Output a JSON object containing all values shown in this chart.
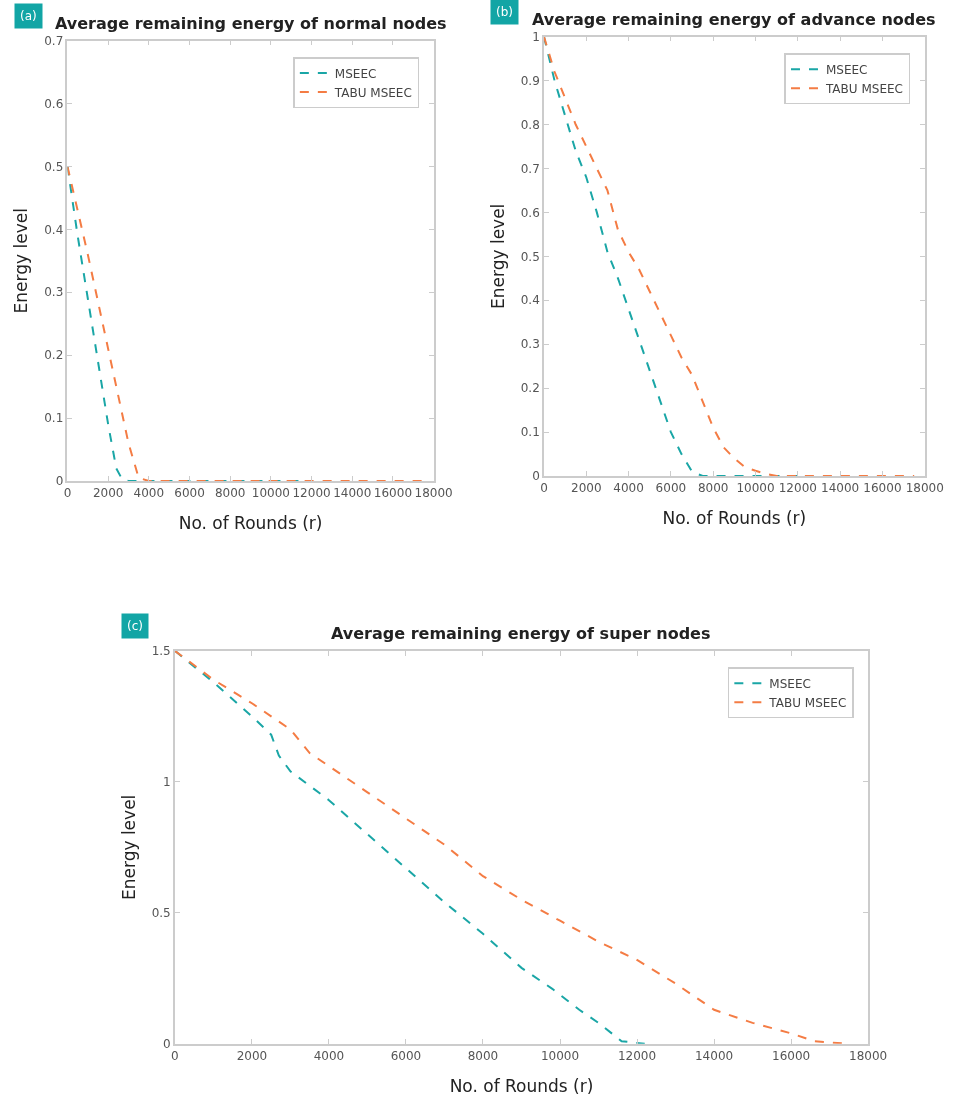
{
  "chart_data": [
    {
      "type": "line",
      "title": "Average remaining energy of normal nodes",
      "xlabel": "No. of Rounds (r)",
      "ylabel": "Energy level",
      "annotations": [
        "(a)"
      ],
      "xlim": [
        0,
        18000
      ],
      "xticks": [
        0,
        2000,
        4000,
        6000,
        8000,
        10000,
        12000,
        14000,
        16000,
        18000
      ],
      "ylim": [
        0,
        0.7
      ],
      "yticks": [
        0,
        0.1,
        0.2,
        0.3,
        0.4,
        0.5,
        0.6,
        0.7
      ],
      "grid": false,
      "legend": "top right",
      "line_style": "dashed",
      "marker": "none",
      "series": [
        {
          "name": "MSEEC",
          "color": "#1aa6a6",
          "x": [
            0,
            500,
            1000,
            1500,
            2000,
            2400,
            2700,
            3000,
            12000
          ],
          "values": [
            0.5,
            0.39,
            0.29,
            0.19,
            0.09,
            0.02,
            0.002,
            0,
            0
          ]
        },
        {
          "name": "TABU MSEEC",
          "color": "#f47c44",
          "x": [
            0,
            1000,
            2000,
            3000,
            3500,
            4000,
            17500
          ],
          "values": [
            0.5,
            0.36,
            0.21,
            0.06,
            0.005,
            0,
            0
          ]
        }
      ]
    },
    {
      "type": "line",
      "title": "Average remaining energy of advance nodes",
      "xlabel": "No. of Rounds (r)",
      "ylabel": "Energy level",
      "annotations": [
        "(b)"
      ],
      "xlim": [
        0,
        18000
      ],
      "xticks": [
        0,
        2000,
        4000,
        6000,
        8000,
        10000,
        12000,
        14000,
        16000,
        18000
      ],
      "ylim": [
        0,
        1
      ],
      "yticks": [
        0,
        0.1,
        0.2,
        0.3,
        0.4,
        0.5,
        0.6,
        0.7,
        0.8,
        0.9,
        1
      ],
      "grid": false,
      "legend": "top right",
      "line_style": "dashed",
      "marker": "none",
      "series": [
        {
          "name": "MSEEC",
          "color": "#1aa6a6",
          "x": [
            0,
            500,
            1000,
            1500,
            2000,
            2500,
            3000,
            3500,
            4000,
            4500,
            5000,
            5500,
            6000,
            6500,
            7000,
            7500,
            12000
          ],
          "values": [
            1,
            0.9,
            0.82,
            0.74,
            0.68,
            0.6,
            0.51,
            0.45,
            0.38,
            0.31,
            0.24,
            0.17,
            0.1,
            0.05,
            0.01,
            0,
            0
          ]
        },
        {
          "name": "TABU MSEEC",
          "color": "#f47c44",
          "x": [
            0,
            500,
            1000,
            1500,
            2000,
            2500,
            3000,
            3500,
            4000,
            4500,
            5000,
            5500,
            6000,
            6500,
            7000,
            7500,
            8000,
            8500,
            9000,
            9500,
            10000,
            10500,
            11000,
            17500
          ],
          "values": [
            1,
            0.92,
            0.86,
            0.8,
            0.75,
            0.7,
            0.65,
            0.56,
            0.51,
            0.47,
            0.42,
            0.37,
            0.32,
            0.27,
            0.23,
            0.17,
            0.11,
            0.065,
            0.04,
            0.02,
            0.012,
            0.005,
            0,
            0
          ]
        }
      ]
    },
    {
      "type": "line",
      "title": "Average remaining energy of super nodes",
      "xlabel": "No. of Rounds (r)",
      "ylabel": "Energy level",
      "annotations": [
        "(c)"
      ],
      "xlim": [
        0,
        18000
      ],
      "xticks": [
        0,
        2000,
        4000,
        6000,
        8000,
        10000,
        12000,
        14000,
        16000,
        18000
      ],
      "ylim": [
        0,
        1.5
      ],
      "yticks": [
        0,
        0.5,
        1,
        1.5
      ],
      "grid": false,
      "legend": "top right",
      "line_style": "dashed",
      "marker": "none",
      "series": [
        {
          "name": "MSEEC",
          "color": "#1aa6a6",
          "x": [
            0,
            1000,
            2000,
            2500,
            2700,
            3000,
            4000,
            5000,
            6000,
            7000,
            8000,
            9000,
            9800,
            10500,
            11000,
            11600,
            12200
          ],
          "values": [
            1.5,
            1.38,
            1.25,
            1.18,
            1.1,
            1.04,
            0.93,
            0.8,
            0.67,
            0.54,
            0.42,
            0.29,
            0.21,
            0.13,
            0.08,
            0.01,
            0
          ]
        },
        {
          "name": "TABU MSEEC",
          "color": "#f47c44",
          "x": [
            0,
            1000,
            2000,
            3000,
            3500,
            4000,
            5000,
            6000,
            7000,
            8000,
            9000,
            10000,
            11000,
            12000,
            13000,
            14000,
            15000,
            16000,
            16600,
            17500
          ],
          "values": [
            1.5,
            1.39,
            1.3,
            1.2,
            1.11,
            1.06,
            0.96,
            0.86,
            0.76,
            0.64,
            0.55,
            0.47,
            0.39,
            0.32,
            0.23,
            0.13,
            0.08,
            0.04,
            0.01,
            0
          ]
        }
      ]
    }
  ]
}
